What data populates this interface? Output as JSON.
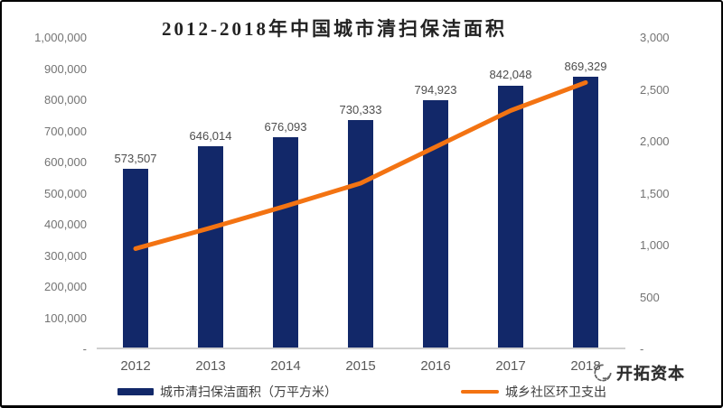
{
  "title": "2012-2018年中国城市清扫保洁面积",
  "watermark": {
    "text": "开拓资本"
  },
  "colors": {
    "bar": "#122869",
    "line": "#F37312",
    "axis_text": "#737373",
    "baseline": "#cfcfcf"
  },
  "legend": [
    {
      "label": "城市清扫保洁面积（万平方米）",
      "swatch": "bar",
      "color": "#122869"
    },
    {
      "label": "城乡社区环卫支出",
      "swatch": "line",
      "color": "#F37312"
    }
  ],
  "chart_data": {
    "type": "combo",
    "title": "2012-2018年中国城市清扫保洁面积",
    "categories": [
      "2012",
      "2013",
      "2014",
      "2015",
      "2016",
      "2017",
      "2018"
    ],
    "series": [
      {
        "name": "城市清扫保洁面积（万平方米）",
        "type": "bar",
        "yaxis": "left",
        "color": "#122869",
        "values": [
          573507,
          646014,
          676093,
          730333,
          794923,
          842048,
          869329
        ],
        "data_labels": [
          "573,507",
          "646,014",
          "676,093",
          "730,333",
          "794,923",
          "842,048",
          "869,329"
        ]
      },
      {
        "name": "城乡社区环卫支出",
        "type": "line",
        "yaxis": "right",
        "color": "#F37312",
        "values": [
          970,
          1170,
          1380,
          1600,
          1950,
          2300,
          2570
        ]
      }
    ],
    "left_axis": {
      "range": [
        0,
        1000000
      ],
      "step": 100000,
      "tick_labels": [
        "-",
        "100,000",
        "200,000",
        "300,000",
        "400,000",
        "500,000",
        "600,000",
        "700,000",
        "800,000",
        "900,000",
        "1,000,000"
      ]
    },
    "right_axis": {
      "range": [
        0,
        3000
      ],
      "step": 500,
      "tick_labels": [
        "-",
        "500",
        "1,000",
        "1,500",
        "2,000",
        "2,500",
        "3,000"
      ]
    },
    "grid": false,
    "legend_position": "bottom"
  }
}
